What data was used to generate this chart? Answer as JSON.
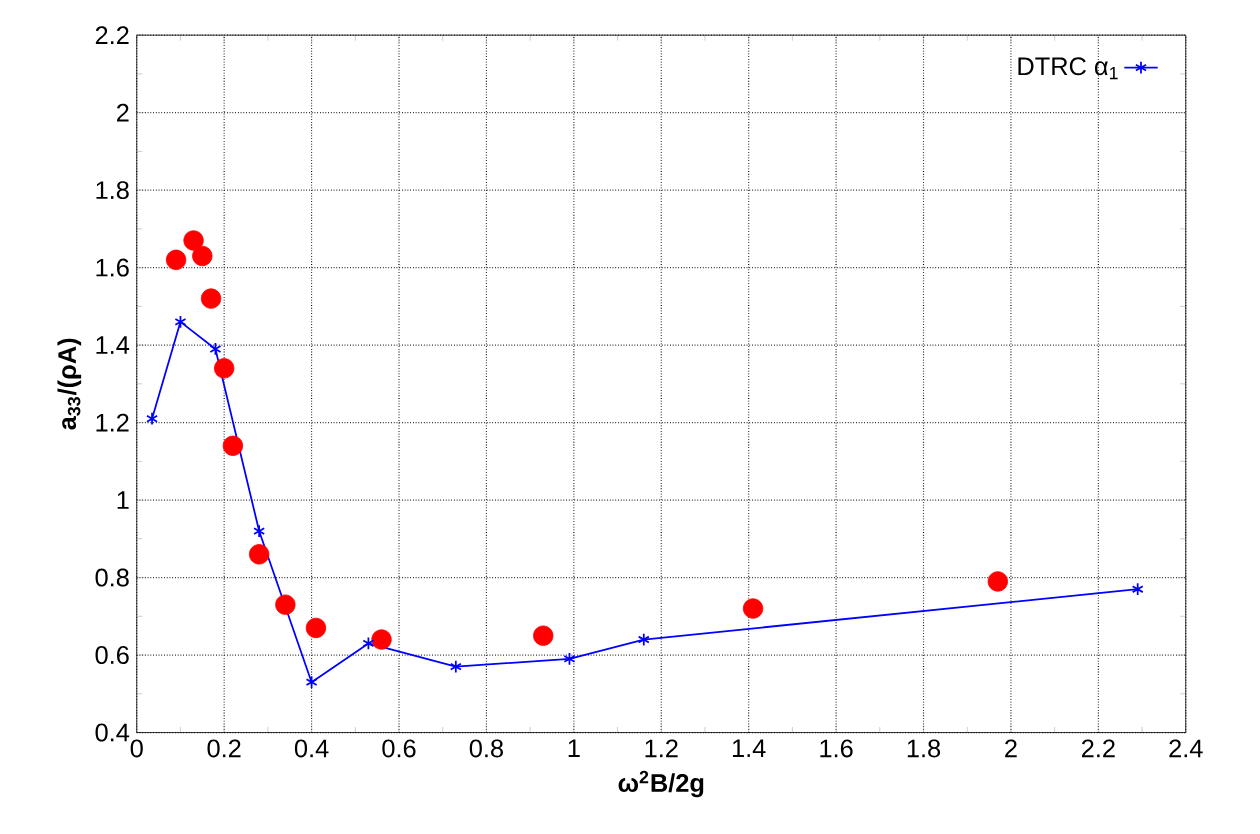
{
  "chart_data": {
    "type": "scatter",
    "xlabel": "**ω$^{2}$B/2g**",
    "ylabel": "**a$_{33}$/(ρA)**",
    "xlim": [
      0,
      2.4
    ],
    "ylim": [
      0.4,
      2.2
    ],
    "xticks": [
      0,
      0.2,
      0.4,
      0.6,
      0.8,
      1,
      1.2,
      1.4,
      1.6,
      1.8,
      2,
      2.2,
      2.4
    ],
    "yticks": [
      0.4,
      0.6,
      0.8,
      1,
      1.2,
      1.4,
      1.6,
      1.8,
      2,
      2.2
    ],
    "grid": true,
    "legend": "top right",
    "series": [
      {
        "marker": "circle",
        "color": "#ff0000",
        "x": [
          0.09,
          0.13,
          0.15,
          0.17,
          0.2,
          0.22,
          0.28,
          0.34,
          0.41,
          0.56,
          0.93,
          1.41,
          1.97
        ],
        "values": [
          1.62,
          1.67,
          1.63,
          1.52,
          1.34,
          1.14,
          0.86,
          0.73,
          0.67,
          0.64,
          0.65,
          0.72,
          0.79
        ]
      },
      {
        "type": "line",
        "marker": "cross",
        "name": "DTRC α$_{1}$",
        "color": "#0000ff",
        "x": [
          0.035,
          0.1,
          0.18,
          0.28,
          0.4,
          0.53,
          0.73,
          0.99,
          1.16,
          2.29
        ],
        "values": [
          1.21,
          1.46,
          1.39,
          0.92,
          0.53,
          0.63,
          0.57,
          0.59,
          0.64,
          0.77
        ]
      }
    ]
  }
}
